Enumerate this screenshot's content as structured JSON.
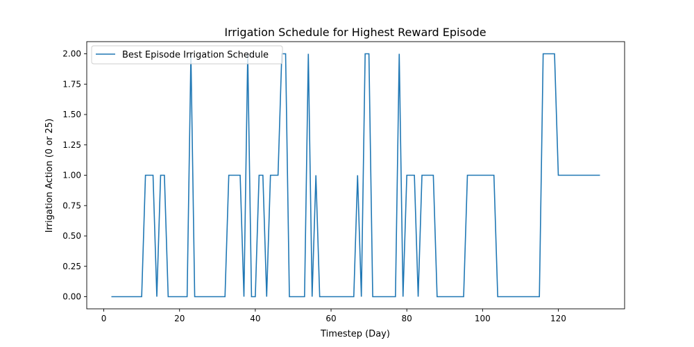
{
  "chart_data": {
    "type": "line",
    "title": "Irrigation Schedule for Highest Reward Episode",
    "xlabel": "Timestep (Day)",
    "ylabel": "Irrigation Action (0 or 25)",
    "xlim": [
      -4.5,
      137.5
    ],
    "ylim": [
      -0.1,
      2.1
    ],
    "xticks": [
      0,
      20,
      40,
      60,
      80,
      100,
      120
    ],
    "xtick_labels": [
      "0",
      "20",
      "40",
      "60",
      "80",
      "100",
      "120"
    ],
    "yticks": [
      0,
      0.25,
      0.5,
      0.75,
      1.0,
      1.25,
      1.5,
      1.75,
      2.0
    ],
    "ytick_labels": [
      "0.00",
      "0.25",
      "0.50",
      "0.75",
      "1.00",
      "1.25",
      "1.50",
      "1.75",
      "2.00"
    ],
    "grid": false,
    "legend": {
      "position": "top-left"
    },
    "series": [
      {
        "name": "Best Episode Irrigation Schedule",
        "color": "#1f77b4",
        "x": [
          2,
          3,
          4,
          5,
          6,
          7,
          8,
          9,
          10,
          11,
          12,
          13,
          14,
          15,
          16,
          17,
          18,
          19,
          20,
          21,
          22,
          23,
          24,
          25,
          26,
          27,
          28,
          29,
          30,
          31,
          32,
          33,
          34,
          35,
          36,
          37,
          38,
          39,
          40,
          41,
          42,
          43,
          44,
          45,
          46,
          47,
          48,
          49,
          50,
          51,
          52,
          53,
          54,
          55,
          56,
          57,
          58,
          59,
          60,
          61,
          62,
          63,
          64,
          65,
          66,
          67,
          68,
          69,
          70,
          71,
          72,
          73,
          74,
          75,
          76,
          77,
          78,
          79,
          80,
          81,
          82,
          83,
          84,
          85,
          86,
          87,
          88,
          89,
          90,
          91,
          92,
          93,
          94,
          95,
          96,
          97,
          98,
          99,
          100,
          101,
          102,
          103,
          104,
          105,
          106,
          107,
          108,
          109,
          110,
          111,
          112,
          113,
          114,
          115,
          116,
          117,
          118,
          119,
          120,
          121,
          122,
          123,
          124,
          125,
          126,
          127,
          128,
          129,
          130,
          131
        ],
        "values": [
          0,
          0,
          0,
          0,
          0,
          0,
          0,
          0,
          0,
          1,
          1,
          1,
          0,
          1,
          1,
          0,
          0,
          0,
          0,
          0,
          0,
          2,
          0,
          0,
          0,
          0,
          0,
          0,
          0,
          0,
          0,
          1,
          1,
          1,
          1,
          0,
          2,
          0,
          0,
          1,
          1,
          0,
          1,
          1,
          1,
          2,
          2,
          0,
          0,
          0,
          0,
          0,
          2,
          0,
          1,
          0,
          0,
          0,
          0,
          0,
          0,
          0,
          0,
          0,
          0,
          1,
          0,
          2,
          2,
          0,
          0,
          0,
          0,
          0,
          0,
          0,
          2,
          0,
          1,
          1,
          1,
          0,
          1,
          1,
          1,
          1,
          0,
          0,
          0,
          0,
          0,
          0,
          0,
          0,
          1,
          1,
          1,
          1,
          1,
          1,
          1,
          1,
          0,
          0,
          0,
          0,
          0,
          0,
          0,
          0,
          0,
          0,
          0,
          0,
          2,
          2,
          2,
          2,
          1,
          1,
          1,
          1,
          1,
          1,
          1,
          1,
          1,
          1,
          1,
          1
        ]
      }
    ]
  }
}
